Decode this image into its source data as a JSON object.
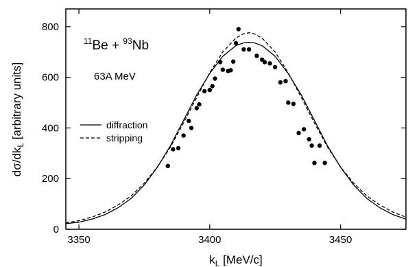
{
  "chart_data": {
    "type": "scatter",
    "title": "",
    "xlabel": "k",
    "xlabel_sub": "L",
    "xlabel_unit": " [MeV/c]",
    "ylabel_prefix": "dσ/dk",
    "ylabel_sub": "L",
    "ylabel_suffix": " [arbitrary units]",
    "xlim": [
      3345,
      3475
    ],
    "ylim": [
      0,
      870
    ],
    "xticks": [
      3350,
      3400,
      3450
    ],
    "yticks": [
      0,
      200,
      400,
      600,
      800
    ],
    "grid": false,
    "annotations": {
      "reaction": {
        "sup1": "11",
        "part1": "Be + ",
        "sup2": "93",
        "part2": "Nb"
      },
      "energy": "63A MeV"
    },
    "legend": {
      "placement": "middle-left",
      "entries": [
        {
          "label": "diffraction",
          "style": "solid"
        },
        {
          "label": "stripping",
          "style": "dashed"
        }
      ]
    },
    "series": [
      {
        "type": "scatter",
        "x": [
          3384,
          3386,
          3388,
          3390,
          3392,
          3393,
          3395,
          3396,
          3398,
          3400,
          3401,
          3402,
          3404,
          3405,
          3407,
          3408,
          3409,
          3410,
          3411,
          3413,
          3415,
          3418,
          3420,
          3421,
          3423,
          3425,
          3427,
          3429,
          3430,
          3432,
          3434,
          3436,
          3438,
          3439,
          3440,
          3442,
          3444
        ],
        "y": [
          250,
          316,
          320,
          370,
          428,
          400,
          478,
          493,
          545,
          550,
          565,
          595,
          660,
          630,
          625,
          628,
          662,
          735,
          790,
          710,
          710,
          685,
          670,
          660,
          655,
          640,
          580,
          585,
          500,
          495,
          380,
          395,
          355,
          330,
          262,
          330,
          262
        ]
      },
      {
        "type": "line",
        "name": "diffraction",
        "style": "solid",
        "x": [
          3345,
          3350,
          3355,
          3360,
          3365,
          3370,
          3375,
          3380,
          3385,
          3390,
          3395,
          3400,
          3405,
          3410,
          3413,
          3415,
          3417,
          3420,
          3425,
          3430,
          3435,
          3440,
          3445,
          3450,
          3455,
          3460,
          3465,
          3470,
          3475
        ],
        "y": [
          22,
          28,
          40,
          58,
          85,
          122,
          175,
          245,
          330,
          430,
          530,
          615,
          683,
          725,
          736,
          738,
          736,
          725,
          683,
          615,
          530,
          430,
          330,
          245,
          175,
          122,
          85,
          58,
          40
        ]
      },
      {
        "type": "line",
        "name": "stripping",
        "style": "dashed",
        "x": [
          3345,
          3350,
          3355,
          3360,
          3365,
          3370,
          3375,
          3380,
          3385,
          3390,
          3395,
          3400,
          3405,
          3410,
          3413,
          3415,
          3417,
          3420,
          3425,
          3430,
          3435,
          3440,
          3445,
          3450,
          3455,
          3460,
          3465,
          3470,
          3475
        ],
        "y": [
          25,
          34,
          48,
          68,
          96,
          132,
          182,
          246,
          325,
          420,
          520,
          618,
          700,
          755,
          772,
          776,
          772,
          755,
          700,
          618,
          520,
          420,
          325,
          246,
          182,
          132,
          96,
          68,
          48
        ]
      }
    ]
  }
}
